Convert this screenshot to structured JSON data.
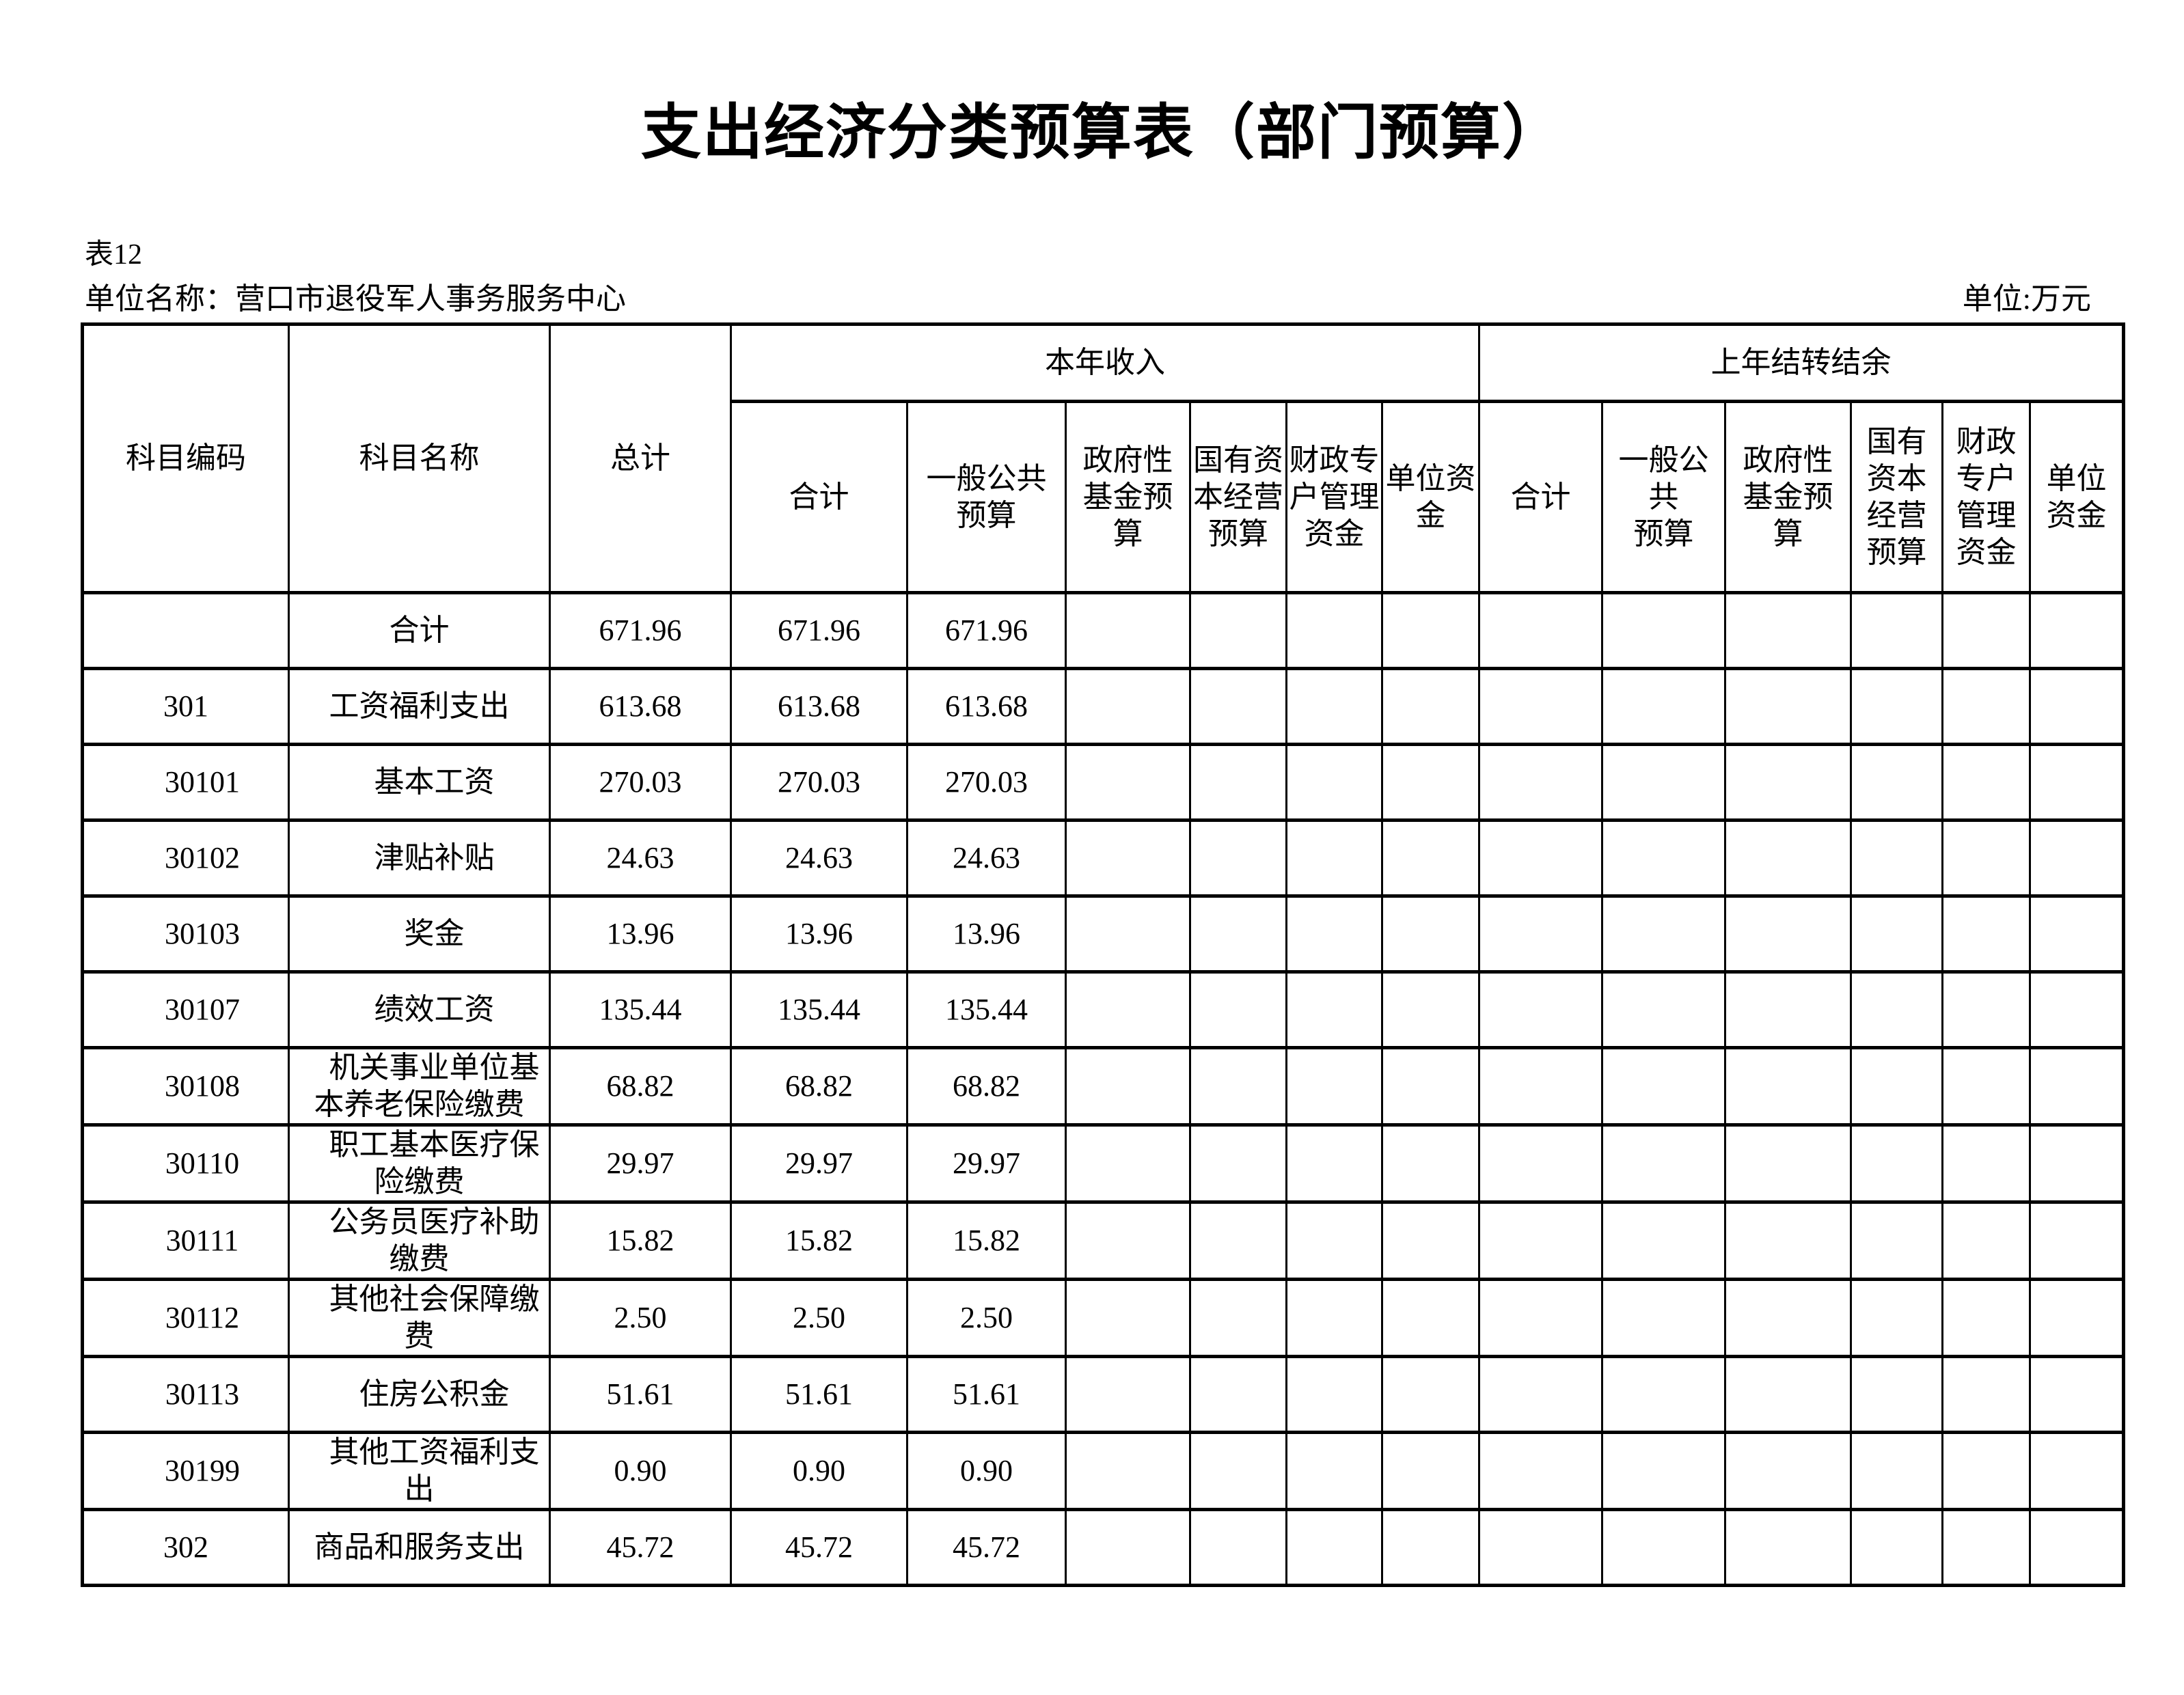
{
  "page": {
    "title": "支出经济分类预算表（部门预算）",
    "table_label": "表12",
    "unit_name": "单位名称：营口市退役军人事务服务中心",
    "unit_label": "单位:万元"
  },
  "colors": {
    "text": "#000000",
    "border": "#000000",
    "background": "#ffffff"
  },
  "table": {
    "columns": {
      "code": "科目编码",
      "name": "科目名称",
      "total": "总计",
      "income_group": "本年收入",
      "carryover_group": "上年结转结余",
      "income_sub": [
        "合计",
        "一般公共\n预算",
        "政府性\n基金预\n算",
        "国有资\n本经营\n预算",
        "财政专\n户管理\n资金",
        "单位资\n金"
      ],
      "carryover_sub": [
        "合计",
        "一般公\n共\n预算",
        "政府性\n基金预\n算",
        "国有\n资本\n经营\n预算",
        "财政\n专户\n管理\n资金",
        "单位\n资金"
      ]
    },
    "rows": [
      {
        "code": "",
        "code_indent": false,
        "name": "合计",
        "name_style": "center",
        "values": [
          "671.96",
          "671.96",
          "671.96",
          "",
          "",
          "",
          "",
          "",
          "",
          "",
          "",
          "",
          ""
        ]
      },
      {
        "code": "301",
        "code_indent": false,
        "name": "工资福利支出",
        "name_style": "flush",
        "values": [
          "613.68",
          "613.68",
          "613.68",
          "",
          "",
          "",
          "",
          "",
          "",
          "",
          "",
          "",
          ""
        ]
      },
      {
        "code": "30101",
        "code_indent": true,
        "name": "基本工资",
        "name_style": "indent",
        "values": [
          "270.03",
          "270.03",
          "270.03",
          "",
          "",
          "",
          "",
          "",
          "",
          "",
          "",
          "",
          ""
        ]
      },
      {
        "code": "30102",
        "code_indent": true,
        "name": "津贴补贴",
        "name_style": "indent",
        "values": [
          "24.63",
          "24.63",
          "24.63",
          "",
          "",
          "",
          "",
          "",
          "",
          "",
          "",
          "",
          ""
        ]
      },
      {
        "code": "30103",
        "code_indent": true,
        "name": "奖金",
        "name_style": "indent",
        "values": [
          "13.96",
          "13.96",
          "13.96",
          "",
          "",
          "",
          "",
          "",
          "",
          "",
          "",
          "",
          ""
        ]
      },
      {
        "code": "30107",
        "code_indent": true,
        "name": "绩效工资",
        "name_style": "indent",
        "values": [
          "135.44",
          "135.44",
          "135.44",
          "",
          "",
          "",
          "",
          "",
          "",
          "",
          "",
          "",
          ""
        ]
      },
      {
        "code": "30108",
        "code_indent": true,
        "name": "机关事业单位基\n本养老保险缴费",
        "name_style": "indent",
        "values": [
          "68.82",
          "68.82",
          "68.82",
          "",
          "",
          "",
          "",
          "",
          "",
          "",
          "",
          "",
          ""
        ]
      },
      {
        "code": "30110",
        "code_indent": true,
        "name": "职工基本医疗保\n险缴费",
        "name_style": "indent",
        "values": [
          "29.97",
          "29.97",
          "29.97",
          "",
          "",
          "",
          "",
          "",
          "",
          "",
          "",
          "",
          ""
        ]
      },
      {
        "code": "30111",
        "code_indent": true,
        "name": "公务员医疗补助\n缴费",
        "name_style": "indent",
        "values": [
          "15.82",
          "15.82",
          "15.82",
          "",
          "",
          "",
          "",
          "",
          "",
          "",
          "",
          "",
          ""
        ]
      },
      {
        "code": "30112",
        "code_indent": true,
        "name": "其他社会保障缴\n费",
        "name_style": "indent",
        "values": [
          "2.50",
          "2.50",
          "2.50",
          "",
          "",
          "",
          "",
          "",
          "",
          "",
          "",
          "",
          ""
        ]
      },
      {
        "code": "30113",
        "code_indent": true,
        "name": "住房公积金",
        "name_style": "indent",
        "values": [
          "51.61",
          "51.61",
          "51.61",
          "",
          "",
          "",
          "",
          "",
          "",
          "",
          "",
          "",
          ""
        ]
      },
      {
        "code": "30199",
        "code_indent": true,
        "name": "其他工资福利支\n出",
        "name_style": "indent",
        "values": [
          "0.90",
          "0.90",
          "0.90",
          "",
          "",
          "",
          "",
          "",
          "",
          "",
          "",
          "",
          ""
        ]
      },
      {
        "code": "302",
        "code_indent": false,
        "name": "商品和服务支出",
        "name_style": "flush",
        "values": [
          "45.72",
          "45.72",
          "45.72",
          "",
          "",
          "",
          "",
          "",
          "",
          "",
          "",
          "",
          ""
        ]
      }
    ]
  }
}
